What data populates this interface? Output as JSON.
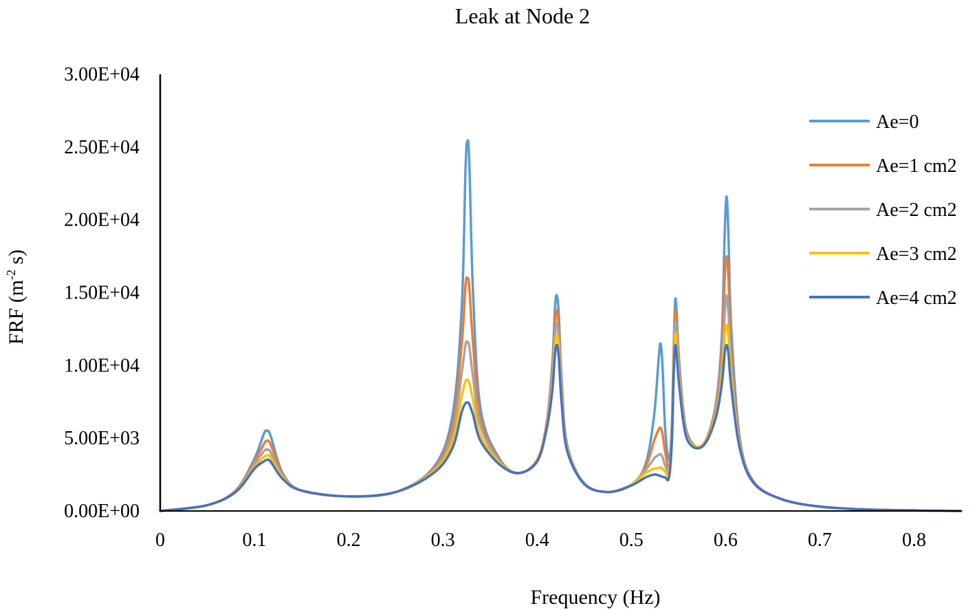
{
  "chart_data": {
    "type": "line",
    "title": "Leak at Node 2",
    "xlabel": "Frequency (Hz)",
    "ylabel": "FRF  (m",
    "ylabel_sup": "-2",
    "ylabel_tail": " s)",
    "xlim": [
      0,
      0.85
    ],
    "ylim": [
      0,
      30000
    ],
    "x_ticks": [
      0,
      0.1,
      0.2,
      0.3,
      0.4,
      0.5,
      0.6,
      0.7,
      0.8
    ],
    "x_tick_labels": [
      "0",
      "0.1",
      "0.2",
      "0.3",
      "0.4",
      "0.5",
      "0.6",
      "0.7",
      "0.8"
    ],
    "y_ticks": [
      0,
      5000,
      10000,
      15000,
      20000,
      25000,
      30000
    ],
    "y_tick_labels": [
      "0.00E+00",
      "5.00E+03",
      "1.00E+04",
      "1.50E+04",
      "2.00E+04",
      "2.50E+04",
      "3.00E+04"
    ],
    "grid": false,
    "legend_position": "right",
    "series": [
      {
        "name": "Ae=0",
        "color": "#5B9BD5",
        "x": [
          0,
          0.05,
          0.08,
          0.1,
          0.11,
          0.113,
          0.117,
          0.13,
          0.15,
          0.2,
          0.25,
          0.29,
          0.31,
          0.32,
          0.324,
          0.326,
          0.328,
          0.332,
          0.34,
          0.36,
          0.38,
          0.4,
          0.41,
          0.416,
          0.419,
          0.421,
          0.423,
          0.426,
          0.432,
          0.45,
          0.475,
          0.5,
          0.515,
          0.524,
          0.529,
          0.531,
          0.533,
          0.536,
          0.54,
          0.543,
          0.545,
          0.547,
          0.55,
          0.555,
          0.56,
          0.57,
          0.58,
          0.59,
          0.596,
          0.599,
          0.601,
          0.603,
          0.606,
          0.615,
          0.63,
          0.66,
          0.7,
          0.75,
          0.8,
          0.85
        ],
        "y": [
          0,
          400,
          1400,
          3600,
          5300,
          5500,
          5200,
          2600,
          1400,
          1000,
          1300,
          3000,
          6500,
          14000,
          23500,
          25400,
          24000,
          15000,
          7000,
          3600,
          2600,
          3500,
          6000,
          10000,
          14000,
          14800,
          13500,
          9000,
          4500,
          1900,
          1300,
          1800,
          3200,
          6500,
          10500,
          11500,
          10000,
          5500,
          3500,
          6000,
          11500,
          14600,
          11000,
          7000,
          5200,
          4400,
          5000,
          7500,
          12000,
          19000,
          21600,
          19000,
          12500,
          5000,
          2000,
          800,
          300,
          100,
          40,
          0
        ]
      },
      {
        "name": "Ae=1 cm2",
        "color": "#ED7D31",
        "x": [
          0,
          0.05,
          0.08,
          0.1,
          0.11,
          0.113,
          0.117,
          0.13,
          0.15,
          0.2,
          0.25,
          0.29,
          0.31,
          0.32,
          0.324,
          0.326,
          0.328,
          0.332,
          0.34,
          0.36,
          0.38,
          0.4,
          0.41,
          0.416,
          0.419,
          0.421,
          0.423,
          0.426,
          0.432,
          0.45,
          0.475,
          0.5,
          0.515,
          0.524,
          0.529,
          0.531,
          0.533,
          0.536,
          0.54,
          0.543,
          0.545,
          0.547,
          0.55,
          0.555,
          0.56,
          0.57,
          0.58,
          0.59,
          0.596,
          0.599,
          0.601,
          0.603,
          0.606,
          0.615,
          0.63,
          0.66,
          0.7,
          0.75,
          0.8,
          0.85
        ],
        "y": [
          0,
          400,
          1400,
          3400,
          4600,
          4800,
          4600,
          2500,
          1400,
          1000,
          1300,
          2900,
          5800,
          11500,
          15500,
          16000,
          15400,
          11500,
          6300,
          3500,
          2600,
          3500,
          6000,
          9500,
          13000,
          13800,
          12600,
          8500,
          4400,
          1900,
          1300,
          1800,
          3000,
          4800,
          5600,
          5700,
          5300,
          4000,
          3000,
          5500,
          11000,
          13800,
          10500,
          6800,
          5100,
          4400,
          5000,
          7300,
          11000,
          16000,
          17500,
          16000,
          11000,
          4800,
          2000,
          800,
          300,
          100,
          40,
          0
        ]
      },
      {
        "name": "Ae=2 cm2",
        "color": "#A5A5A5",
        "x": [
          0,
          0.05,
          0.08,
          0.1,
          0.11,
          0.113,
          0.117,
          0.13,
          0.15,
          0.2,
          0.25,
          0.29,
          0.31,
          0.32,
          0.324,
          0.326,
          0.328,
          0.332,
          0.34,
          0.36,
          0.38,
          0.4,
          0.41,
          0.416,
          0.419,
          0.421,
          0.423,
          0.426,
          0.432,
          0.45,
          0.475,
          0.5,
          0.515,
          0.524,
          0.529,
          0.531,
          0.533,
          0.536,
          0.54,
          0.543,
          0.545,
          0.547,
          0.55,
          0.555,
          0.56,
          0.57,
          0.58,
          0.59,
          0.596,
          0.599,
          0.601,
          0.603,
          0.606,
          0.615,
          0.63,
          0.66,
          0.7,
          0.75,
          0.8,
          0.85
        ],
        "y": [
          0,
          400,
          1350,
          3200,
          4100,
          4200,
          4050,
          2400,
          1400,
          1000,
          1300,
          2800,
          5200,
          9500,
          11400,
          11600,
          11300,
          9200,
          5800,
          3400,
          2600,
          3400,
          5800,
          9000,
          12200,
          12900,
          11800,
          8000,
          4300,
          1900,
          1300,
          1800,
          2800,
          3600,
          3850,
          3900,
          3700,
          3100,
          2700,
          5200,
          10500,
          13000,
          10000,
          6600,
          5000,
          4400,
          4900,
          7000,
          10000,
          13500,
          14800,
          13600,
          10000,
          4600,
          1950,
          800,
          300,
          100,
          40,
          0
        ]
      },
      {
        "name": "Ae=3 cm2",
        "color": "#FFC000",
        "x": [
          0,
          0.05,
          0.08,
          0.1,
          0.11,
          0.113,
          0.117,
          0.13,
          0.15,
          0.2,
          0.25,
          0.29,
          0.31,
          0.32,
          0.324,
          0.326,
          0.328,
          0.332,
          0.34,
          0.36,
          0.38,
          0.4,
          0.41,
          0.416,
          0.419,
          0.421,
          0.423,
          0.426,
          0.432,
          0.45,
          0.475,
          0.5,
          0.515,
          0.524,
          0.529,
          0.531,
          0.533,
          0.536,
          0.54,
          0.543,
          0.545,
          0.547,
          0.55,
          0.555,
          0.56,
          0.57,
          0.58,
          0.59,
          0.596,
          0.599,
          0.601,
          0.603,
          0.606,
          0.615,
          0.63,
          0.66,
          0.7,
          0.75,
          0.8,
          0.85
        ],
        "y": [
          0,
          400,
          1300,
          3000,
          3700,
          3800,
          3700,
          2300,
          1400,
          1000,
          1300,
          2700,
          4700,
          7900,
          8900,
          9000,
          8800,
          7600,
          5200,
          3300,
          2600,
          3400,
          5700,
          8500,
          11500,
          12100,
          11100,
          7700,
          4200,
          1850,
          1300,
          1800,
          2600,
          2900,
          2950,
          3000,
          2900,
          2700,
          2500,
          5000,
          10000,
          12200,
          9500,
          6400,
          4900,
          4400,
          4900,
          6700,
          9200,
          12000,
          12800,
          12000,
          9200,
          4400,
          1900,
          800,
          300,
          100,
          40,
          0
        ]
      },
      {
        "name": "Ae=4 cm2",
        "color": "#4472C4",
        "x": [
          0,
          0.05,
          0.08,
          0.1,
          0.11,
          0.113,
          0.117,
          0.13,
          0.15,
          0.2,
          0.25,
          0.29,
          0.31,
          0.32,
          0.324,
          0.326,
          0.328,
          0.332,
          0.34,
          0.36,
          0.38,
          0.4,
          0.41,
          0.416,
          0.419,
          0.421,
          0.423,
          0.426,
          0.432,
          0.45,
          0.475,
          0.5,
          0.515,
          0.524,
          0.529,
          0.531,
          0.533,
          0.536,
          0.54,
          0.543,
          0.545,
          0.547,
          0.55,
          0.555,
          0.56,
          0.57,
          0.58,
          0.59,
          0.596,
          0.599,
          0.601,
          0.603,
          0.606,
          0.615,
          0.63,
          0.66,
          0.7,
          0.75,
          0.8,
          0.85
        ],
        "y": [
          0,
          400,
          1300,
          2900,
          3400,
          3500,
          3400,
          2200,
          1400,
          1000,
          1300,
          2600,
          4300,
          6800,
          7400,
          7450,
          7350,
          6600,
          4800,
          3200,
          2600,
          3400,
          5600,
          8200,
          10800,
          11400,
          10500,
          7400,
          4100,
          1850,
          1300,
          1750,
          2300,
          2500,
          2450,
          2400,
          2350,
          2300,
          2300,
          4800,
          9500,
          11400,
          9100,
          6200,
          4800,
          4300,
          4800,
          6500,
          8700,
          10800,
          11400,
          10800,
          8500,
          4300,
          1900,
          800,
          300,
          100,
          40,
          0
        ]
      }
    ]
  }
}
